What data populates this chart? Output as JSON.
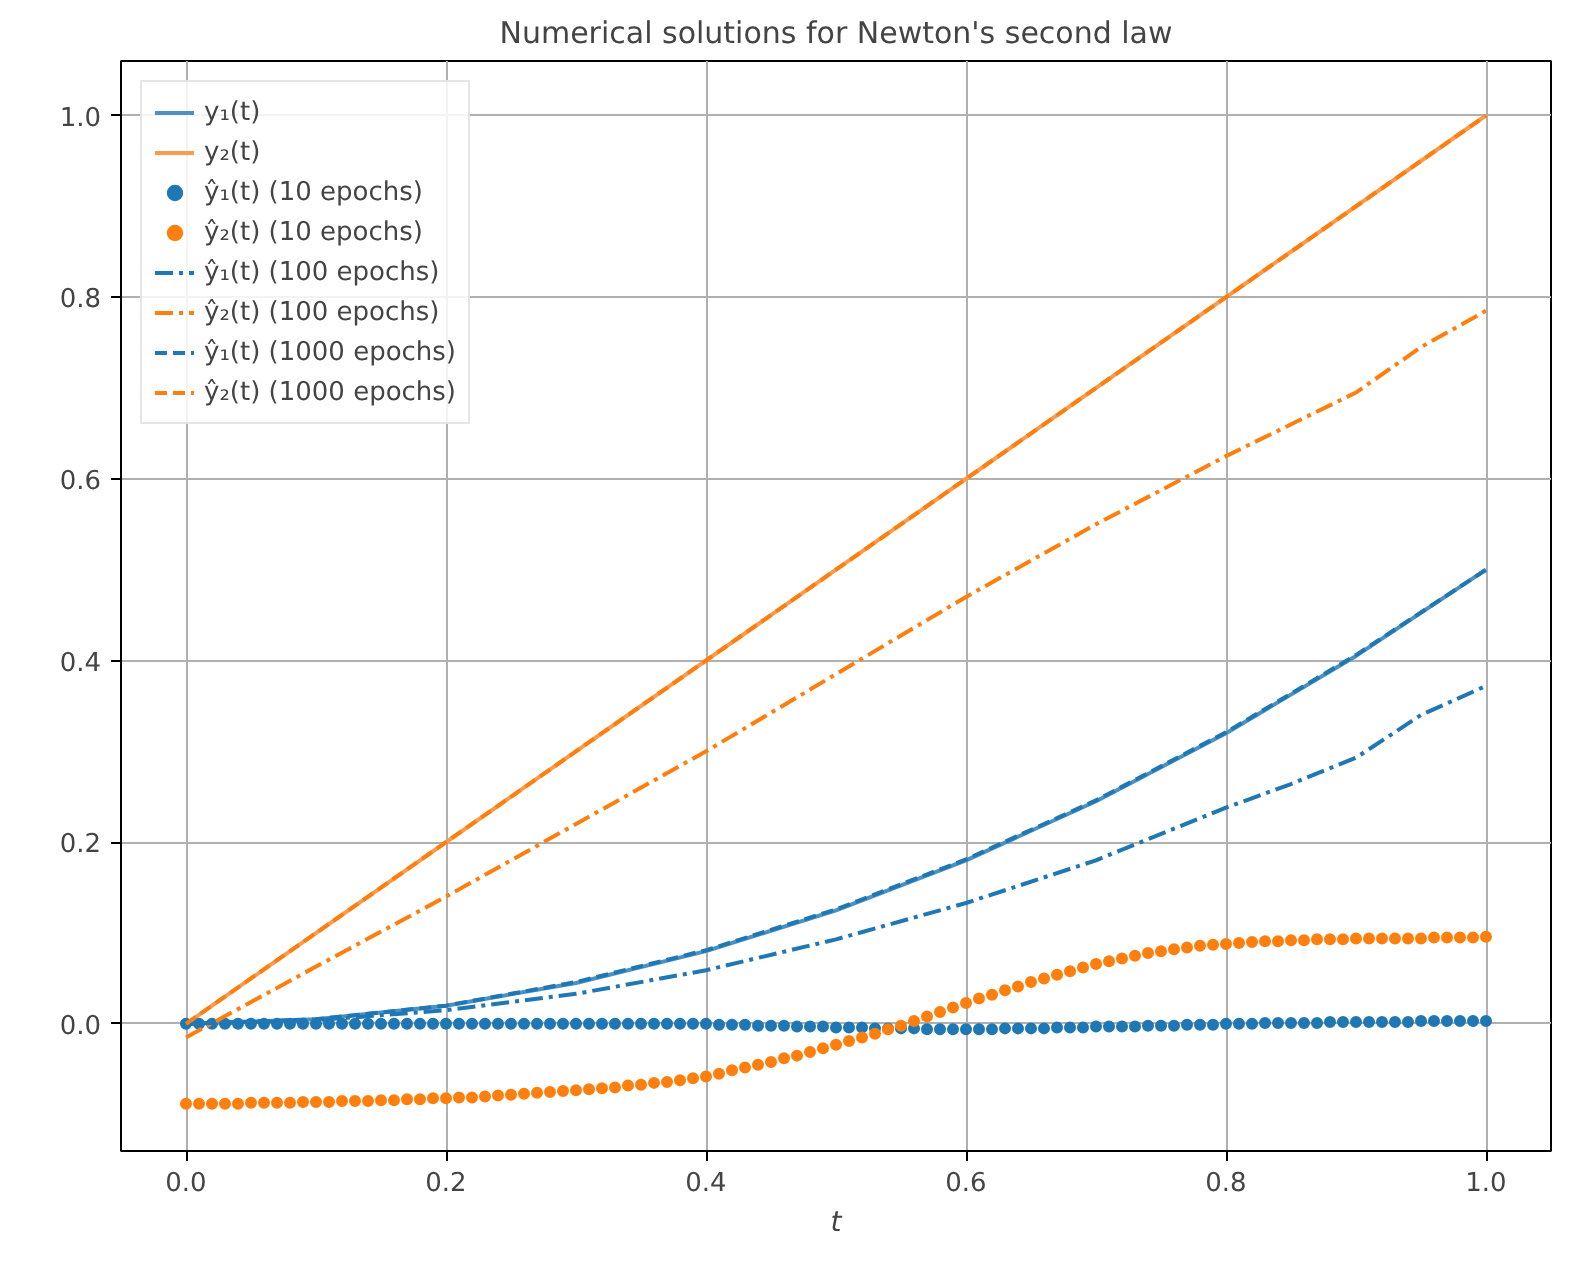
{
  "chart_data": {
    "type": "line",
    "title": "Numerical solutions for Newton's second law",
    "xlabel": "t",
    "xlim": [
      -0.05,
      1.05
    ],
    "ylim": [
      -0.14,
      1.06
    ],
    "xticks": [
      {
        "value": 0,
        "label": "0.0"
      },
      0.2,
      0.4,
      0.6,
      0.8,
      {
        "value": 1,
        "label": "1.0"
      }
    ],
    "yticks": [
      {
        "value": 0,
        "label": "0.0"
      },
      0.2,
      0.4,
      0.6,
      0.8,
      {
        "value": 1,
        "label": "1.0"
      }
    ],
    "grid": true,
    "legend": "top left",
    "series": [
      {
        "name": "y₁(t)",
        "color": "#4b92c3",
        "line_style": "solid",
        "x": [
          0,
          0.1,
          0.2,
          0.3,
          0.4,
          0.5,
          0.6,
          0.7,
          0.8,
          0.9,
          1.0
        ],
        "values": [
          0,
          0.005,
          0.02,
          0.045,
          0.08,
          0.125,
          0.18,
          0.245,
          0.32,
          0.405,
          0.5
        ]
      },
      {
        "name": "y₂(t)",
        "color": "#ff9a4a",
        "line_style": "solid",
        "x": [
          0,
          0.5,
          1.0
        ],
        "values": [
          0,
          0.5,
          1.0
        ]
      },
      {
        "name": "ŷ₁(t) (10 epochs)",
        "color": "#1f77b4",
        "type": "scatter",
        "marker": "circle",
        "x": [
          0,
          0.01,
          0.02,
          0.03,
          0.04,
          0.05,
          0.06,
          0.07,
          0.08,
          0.09,
          0.1,
          0.11,
          0.12,
          0.13,
          0.14,
          0.15,
          0.16,
          0.17,
          0.18,
          0.19,
          0.2,
          0.21,
          0.22,
          0.23,
          0.24,
          0.25,
          0.26,
          0.27,
          0.28,
          0.29,
          0.3,
          0.31,
          0.32,
          0.33,
          0.34,
          0.35,
          0.36,
          0.37,
          0.38,
          0.39,
          0.4,
          0.41,
          0.42,
          0.43,
          0.44,
          0.45,
          0.46,
          0.47,
          0.48,
          0.49,
          0.5,
          0.51,
          0.52,
          0.53,
          0.54,
          0.55,
          0.56,
          0.57,
          0.58,
          0.59,
          0.6,
          0.61,
          0.62,
          0.63,
          0.64,
          0.65,
          0.66,
          0.67,
          0.68,
          0.69,
          0.7,
          0.71,
          0.72,
          0.73,
          0.74,
          0.75,
          0.76,
          0.77,
          0.78,
          0.79,
          0.8,
          0.81,
          0.82,
          0.83,
          0.84,
          0.85,
          0.86,
          0.87,
          0.88,
          0.89,
          0.9,
          0.91,
          0.92,
          0.93,
          0.94,
          0.95,
          0.96,
          0.97,
          0.98,
          0.99,
          1.0
        ],
        "values": [
          0,
          0,
          0,
          0,
          0,
          0,
          0,
          0,
          0,
          0,
          0,
          0,
          0,
          0,
          0,
          0,
          0,
          0,
          0,
          0,
          0,
          0,
          0,
          0,
          0,
          0,
          0,
          0,
          0,
          0,
          0,
          0,
          0,
          0,
          0,
          0,
          0,
          0,
          0,
          0,
          0,
          -0.001,
          -0.001,
          -0.001,
          -0.002,
          -0.002,
          -0.002,
          -0.003,
          -0.003,
          -0.003,
          -0.004,
          -0.004,
          -0.004,
          -0.005,
          -0.005,
          -0.005,
          -0.005,
          -0.006,
          -0.006,
          -0.006,
          -0.006,
          -0.006,
          -0.006,
          -0.005,
          -0.005,
          -0.005,
          -0.005,
          -0.004,
          -0.004,
          -0.004,
          -0.003,
          -0.003,
          -0.003,
          -0.003,
          -0.002,
          -0.002,
          -0.002,
          -0.001,
          -0.001,
          -0.001,
          0,
          0,
          0,
          0.001,
          0.001,
          0.001,
          0.001,
          0.001,
          0.002,
          0.002,
          0.002,
          0.002,
          0.002,
          0.002,
          0.002,
          0.003,
          0.003,
          0.003,
          0.003,
          0.003,
          0.003
        ]
      },
      {
        "name": "ŷ₂(t) (10 epochs)",
        "color": "#ff7f0e",
        "type": "scatter",
        "marker": "circle",
        "x": [
          0,
          0.01,
          0.02,
          0.03,
          0.04,
          0.05,
          0.06,
          0.07,
          0.08,
          0.09,
          0.1,
          0.11,
          0.12,
          0.13,
          0.14,
          0.15,
          0.16,
          0.17,
          0.18,
          0.19,
          0.2,
          0.21,
          0.22,
          0.23,
          0.24,
          0.25,
          0.26,
          0.27,
          0.28,
          0.29,
          0.3,
          0.31,
          0.32,
          0.33,
          0.34,
          0.35,
          0.36,
          0.37,
          0.38,
          0.39,
          0.4,
          0.41,
          0.42,
          0.43,
          0.44,
          0.45,
          0.46,
          0.47,
          0.48,
          0.49,
          0.5,
          0.51,
          0.52,
          0.53,
          0.54,
          0.55,
          0.56,
          0.57,
          0.58,
          0.59,
          0.6,
          0.61,
          0.62,
          0.63,
          0.64,
          0.65,
          0.66,
          0.67,
          0.68,
          0.69,
          0.7,
          0.71,
          0.72,
          0.73,
          0.74,
          0.75,
          0.76,
          0.77,
          0.78,
          0.79,
          0.8,
          0.81,
          0.82,
          0.83,
          0.84,
          0.85,
          0.86,
          0.87,
          0.88,
          0.89,
          0.9,
          0.91,
          0.92,
          0.93,
          0.94,
          0.95,
          0.96,
          0.97,
          0.98,
          0.99,
          1.0
        ],
        "values": [
          -0.088,
          -0.088,
          -0.088,
          -0.088,
          -0.088,
          -0.087,
          -0.087,
          -0.087,
          -0.087,
          -0.086,
          -0.086,
          -0.086,
          -0.085,
          -0.085,
          -0.085,
          -0.084,
          -0.084,
          -0.083,
          -0.083,
          -0.082,
          -0.082,
          -0.081,
          -0.081,
          -0.08,
          -0.079,
          -0.078,
          -0.077,
          -0.076,
          -0.075,
          -0.074,
          -0.073,
          -0.072,
          -0.071,
          -0.07,
          -0.068,
          -0.067,
          -0.065,
          -0.064,
          -0.062,
          -0.06,
          -0.058,
          -0.055,
          -0.051,
          -0.048,
          -0.045,
          -0.042,
          -0.038,
          -0.035,
          -0.031,
          -0.027,
          -0.023,
          -0.019,
          -0.015,
          -0.011,
          -0.006,
          -0.002,
          0.003,
          0.008,
          0.013,
          0.018,
          0.023,
          0.028,
          0.032,
          0.037,
          0.041,
          0.046,
          0.05,
          0.054,
          0.058,
          0.062,
          0.066,
          0.069,
          0.072,
          0.075,
          0.078,
          0.08,
          0.082,
          0.084,
          0.086,
          0.087,
          0.088,
          0.089,
          0.09,
          0.091,
          0.091,
          0.092,
          0.092,
          0.093,
          0.093,
          0.093,
          0.094,
          0.094,
          0.094,
          0.094,
          0.094,
          0.094,
          0.095,
          0.095,
          0.095,
          0.095,
          0.096
        ]
      },
      {
        "name": "ŷ₁(t) (100 epochs)",
        "color": "#1f77b4",
        "line_style": "dashdot",
        "x": [
          0,
          0.1,
          0.2,
          0.3,
          0.4,
          0.5,
          0.6,
          0.7,
          0.8,
          0.85,
          0.9,
          0.95,
          1.0
        ],
        "values": [
          0,
          0.004,
          0.015,
          0.033,
          0.059,
          0.093,
          0.133,
          0.18,
          0.238,
          0.264,
          0.293,
          0.34,
          0.372
        ]
      },
      {
        "name": "ŷ₂(t) (100 epochs)",
        "color": "#ff7f0e",
        "line_style": "dashdot",
        "x": [
          0,
          0.1,
          0.2,
          0.3,
          0.4,
          0.5,
          0.6,
          0.7,
          0.8,
          0.9,
          0.95,
          1.0
        ],
        "values": [
          -0.015,
          0.063,
          0.14,
          0.22,
          0.3,
          0.385,
          0.47,
          0.55,
          0.625,
          0.695,
          0.745,
          0.785
        ]
      },
      {
        "name": "ŷ₁(t) (1000 epochs)",
        "color": "#1f77b4",
        "line_style": "dashed",
        "x": [
          0,
          0.1,
          0.2,
          0.3,
          0.4,
          0.5,
          0.6,
          0.7,
          0.8,
          0.9,
          1.0
        ],
        "values": [
          0,
          0.005,
          0.02,
          0.046,
          0.081,
          0.126,
          0.181,
          0.246,
          0.321,
          0.406,
          0.5
        ]
      },
      {
        "name": "ŷ₂(t) (1000 epochs)",
        "color": "#ff7f0e",
        "line_style": "dashed",
        "x": [
          0,
          0.5,
          1.0
        ],
        "values": [
          0,
          0.5,
          1.0
        ]
      }
    ]
  }
}
